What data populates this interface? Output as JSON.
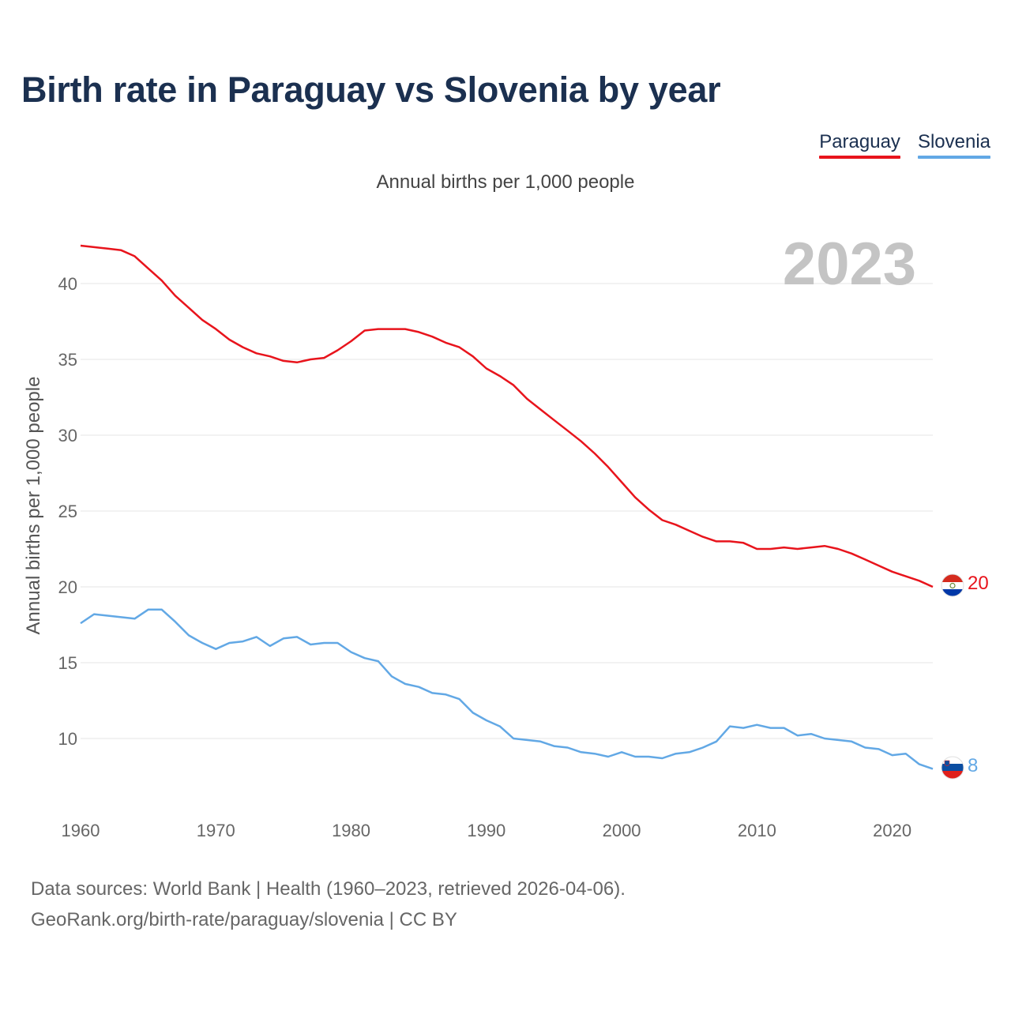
{
  "title": "Birth rate in Paraguay vs Slovenia by year",
  "subtitle": "Annual births per 1,000 people",
  "year_label": "2023",
  "footer": {
    "line1": "Data sources: World Bank | Health (1960–2023, retrieved 2026-04-06).",
    "line2": "GeoRank.org/birth-rate/paraguay/slovenia | CC BY"
  },
  "legend": [
    {
      "label": "Paraguay",
      "color": "#e8141c"
    },
    {
      "label": "Slovenia",
      "color": "#62a8e5"
    }
  ],
  "chart_data": {
    "type": "line",
    "title": "Birth rate in Paraguay vs Slovenia by year",
    "subtitle": "Annual births per 1,000 people",
    "xlabel": "",
    "ylabel": "Annual births per 1,000 people",
    "xlim": [
      1960,
      2023
    ],
    "ylim": [
      7,
      43
    ],
    "x_ticks": [
      1960,
      1970,
      1980,
      1990,
      2000,
      2010,
      2020
    ],
    "y_ticks": [
      10,
      15,
      20,
      25,
      30,
      35,
      40
    ],
    "grid": true,
    "legend_position": "top-right",
    "x": [
      1960,
      1961,
      1962,
      1963,
      1964,
      1965,
      1966,
      1967,
      1968,
      1969,
      1970,
      1971,
      1972,
      1973,
      1974,
      1975,
      1976,
      1977,
      1978,
      1979,
      1980,
      1981,
      1982,
      1983,
      1984,
      1985,
      1986,
      1987,
      1988,
      1989,
      1990,
      1991,
      1992,
      1993,
      1994,
      1995,
      1996,
      1997,
      1998,
      1999,
      2000,
      2001,
      2002,
      2003,
      2004,
      2005,
      2006,
      2007,
      2008,
      2009,
      2010,
      2011,
      2012,
      2013,
      2014,
      2015,
      2016,
      2017,
      2018,
      2019,
      2020,
      2021,
      2022,
      2023
    ],
    "series": [
      {
        "name": "Paraguay",
        "color": "#e8141c",
        "end_label": "20",
        "flag": "paraguay-flag",
        "values": [
          42.5,
          42.4,
          42.3,
          42.2,
          41.8,
          41.0,
          40.2,
          39.2,
          38.4,
          37.6,
          37.0,
          36.3,
          35.8,
          35.4,
          35.2,
          34.9,
          34.8,
          35.0,
          35.1,
          35.6,
          36.2,
          36.9,
          37.0,
          37.0,
          37.0,
          36.8,
          36.5,
          36.1,
          35.8,
          35.2,
          34.4,
          33.9,
          33.3,
          32.4,
          31.7,
          31.0,
          30.3,
          29.6,
          28.8,
          27.9,
          26.9,
          25.9,
          25.1,
          24.4,
          24.1,
          23.7,
          23.3,
          23.0,
          23.0,
          22.9,
          22.5,
          22.5,
          22.6,
          22.5,
          22.6,
          22.7,
          22.5,
          22.2,
          21.8,
          21.4,
          21.0,
          20.7,
          20.4,
          20.0
        ]
      },
      {
        "name": "Slovenia",
        "color": "#62a8e5",
        "end_label": "8",
        "flag": "slovenia-flag",
        "values": [
          17.6,
          18.2,
          18.1,
          18.0,
          17.9,
          18.5,
          18.5,
          17.7,
          16.8,
          16.3,
          15.9,
          16.3,
          16.4,
          16.7,
          16.1,
          16.6,
          16.7,
          16.2,
          16.3,
          16.3,
          15.7,
          15.3,
          15.1,
          14.1,
          13.6,
          13.4,
          13.0,
          12.9,
          12.6,
          11.7,
          11.2,
          10.8,
          10.0,
          9.9,
          9.8,
          9.5,
          9.4,
          9.1,
          9.0,
          8.8,
          9.1,
          8.8,
          8.8,
          8.7,
          9.0,
          9.1,
          9.4,
          9.8,
          10.8,
          10.7,
          10.9,
          10.7,
          10.7,
          10.2,
          10.3,
          10.0,
          9.9,
          9.8,
          9.4,
          9.3,
          8.9,
          9.0,
          8.3,
          8.0
        ]
      }
    ]
  }
}
